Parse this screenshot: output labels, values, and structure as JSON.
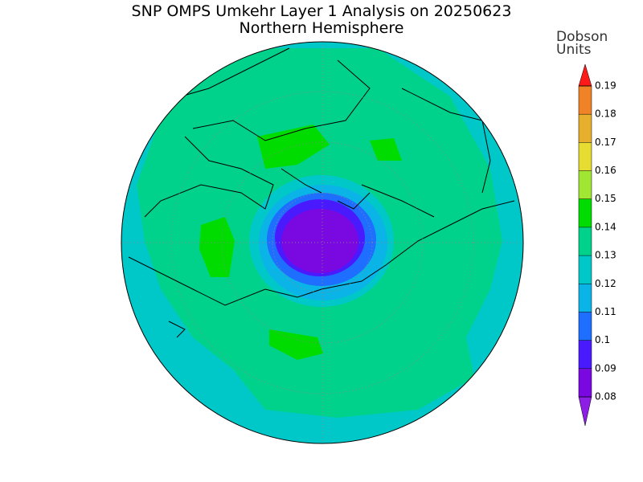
{
  "map": {
    "title": "SNP OMPS Umkehr Layer 1 Analysis on 20250623",
    "subtitle": "Northern Hemisphere"
  },
  "legend": {
    "label_lines": [
      "Dobson",
      "Units"
    ],
    "ticks": [
      0.08,
      0.09,
      0.1,
      0.11,
      0.12,
      0.13,
      0.14,
      0.15,
      0.16,
      0.17,
      0.18,
      0.19
    ],
    "colors": [
      "#8c1ee6",
      "#7a08e0",
      "#4a1aff",
      "#1e6eff",
      "#0ab4e6",
      "#00c8c8",
      "#00d28c",
      "#00dc00",
      "#a0e632",
      "#e6dc32",
      "#e6af2d",
      "#f08228",
      "#ff1a1a",
      "#c8007d"
    ]
  }
}
